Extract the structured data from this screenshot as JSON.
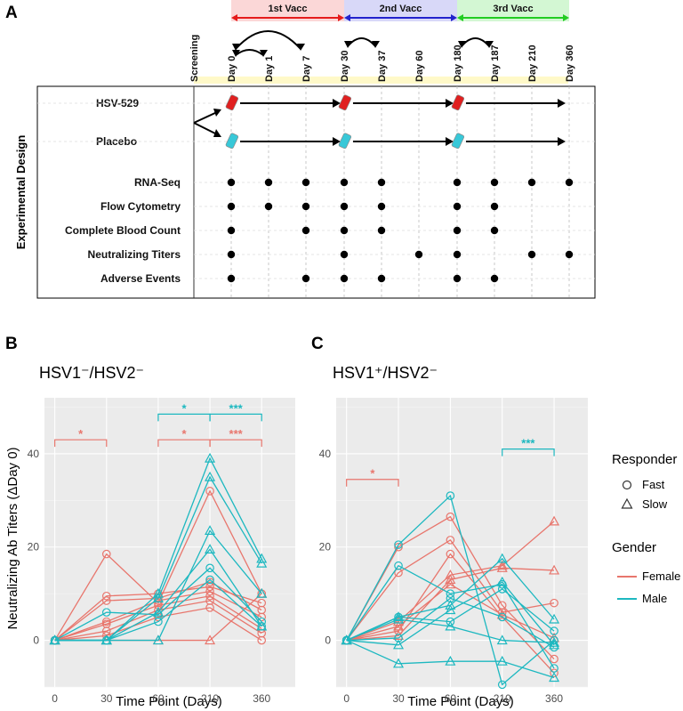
{
  "colors": {
    "female": "#E8766D",
    "male": "#1DB8C0",
    "panel_bg": "#EBEBEB",
    "grid_major": "#FFFFFF",
    "vacc1": "#E51B1B",
    "vacc2": "#2222CC",
    "vacc3": "#22CC22"
  },
  "panel_a": {
    "label": "A",
    "vaccinations": [
      {
        "label": "1st Vacc",
        "from": "Day 0",
        "to": "Day 30"
      },
      {
        "label": "2nd Vacc",
        "from": "Day 30",
        "to": "Day 180"
      },
      {
        "label": "3rd Vacc",
        "from": "Day 180",
        "to": "Day 360"
      }
    ],
    "timepoints": [
      "Screening",
      "Day 0",
      "Day 1",
      "Day 7",
      "Day 30",
      "Day 37",
      "Day 60",
      "Day 180",
      "Day 187",
      "Day 210",
      "Day 360"
    ],
    "y_title": "Experimental Design",
    "arms": [
      "HSV-529",
      "Placebo"
    ],
    "assays": [
      {
        "name": "RNA-Seq",
        "days": [
          "Day 0",
          "Day 1",
          "Day 7",
          "Day 30",
          "Day 37",
          "Day 180",
          "Day 187",
          "Day 210",
          "Day 360"
        ]
      },
      {
        "name": "Flow Cytometry",
        "days": [
          "Day 0",
          "Day 1",
          "Day 7",
          "Day 30",
          "Day 37",
          "Day 180",
          "Day 187"
        ]
      },
      {
        "name": "Complete Blood Count",
        "days": [
          "Day 0",
          "Day 7",
          "Day 30",
          "Day 37",
          "Day 180",
          "Day 187"
        ]
      },
      {
        "name": "Neutralizing Titers",
        "days": [
          "Day 0",
          "Day 30",
          "Day 60",
          "Day 180",
          "Day 210",
          "Day 360"
        ]
      },
      {
        "name": "Adverse Events",
        "days": [
          "Day 0",
          "Day 7",
          "Day 30",
          "Day 37",
          "Day 180",
          "Day 187"
        ]
      }
    ]
  },
  "chart_data": [
    {
      "panel": "B",
      "type": "line",
      "title": "HSV1⁻/HSV2⁻",
      "xlabel": "Time Point (Days)",
      "ylabel": "Neutralizing Ab Titers (ΔDay 0)",
      "x_categories": [
        "0",
        "30",
        "60",
        "210",
        "360"
      ],
      "y_ticks": [
        0,
        20,
        40
      ],
      "ylim": [
        -10,
        52
      ],
      "grid": true,
      "series": [
        {
          "gender": "Female",
          "responder": "Fast",
          "values": [
            0,
            18.5,
            8,
            32,
            10
          ]
        },
        {
          "gender": "Female",
          "responder": "Fast",
          "values": [
            0,
            9.5,
            10,
            11.5,
            8
          ]
        },
        {
          "gender": "Female",
          "responder": "Fast",
          "values": [
            0,
            8.5,
            9,
            12.5,
            6.5
          ]
        },
        {
          "gender": "Female",
          "responder": "Fast",
          "values": [
            0,
            4,
            8.5,
            10.5,
            5
          ]
        },
        {
          "gender": "Female",
          "responder": "Fast",
          "values": [
            0,
            3.5,
            7.5,
            9.5,
            2.5
          ]
        },
        {
          "gender": "Female",
          "responder": "Fast",
          "values": [
            0,
            2,
            6.5,
            8.5,
            1.5
          ]
        },
        {
          "gender": "Female",
          "responder": "Fast",
          "values": [
            0,
            1,
            5,
            7,
            0
          ]
        },
        {
          "gender": "Female",
          "responder": "Slow",
          "values": [
            0,
            0,
            0,
            0,
            10
          ]
        },
        {
          "gender": "Male",
          "responder": "Fast",
          "values": [
            0,
            6,
            5.5,
            15.5,
            4
          ]
        },
        {
          "gender": "Male",
          "responder": "Fast",
          "values": [
            0,
            0,
            4,
            13,
            3
          ]
        },
        {
          "gender": "Male",
          "responder": "Slow",
          "values": [
            0,
            0,
            10,
            39,
            17.5
          ]
        },
        {
          "gender": "Male",
          "responder": "Slow",
          "values": [
            0,
            0,
            9,
            35,
            16.5
          ]
        },
        {
          "gender": "Male",
          "responder": "Slow",
          "values": [
            0,
            0,
            0,
            23.5,
            10
          ]
        },
        {
          "gender": "Male",
          "responder": "Slow",
          "values": [
            0,
            0,
            6,
            19.5,
            3
          ]
        }
      ],
      "brackets": [
        {
          "from": "0",
          "to": "30",
          "label": "*",
          "gender": "Female",
          "y": 43
        },
        {
          "from": "60",
          "to": "210",
          "label": "*",
          "gender": "Female",
          "y": 43
        },
        {
          "from": "210",
          "to": "360",
          "label": "***",
          "gender": "Female",
          "y": 43
        },
        {
          "from": "60",
          "to": "210",
          "label": "*",
          "gender": "Male",
          "y": 48.5
        },
        {
          "from": "210",
          "to": "360",
          "label": "***",
          "gender": "Male",
          "y": 48.5
        }
      ]
    },
    {
      "panel": "C",
      "type": "line",
      "title": "HSV1⁺/HSV2⁻",
      "xlabel": "Time Point (Days)",
      "ylabel": "",
      "x_categories": [
        "0",
        "30",
        "60",
        "210",
        "360"
      ],
      "y_ticks": [
        0,
        20,
        40
      ],
      "ylim": [
        -10,
        52
      ],
      "grid": true,
      "series": [
        {
          "gender": "Female",
          "responder": "Fast",
          "values": [
            0,
            20,
            26.5,
            7.5,
            -4
          ]
        },
        {
          "gender": "Female",
          "responder": "Fast",
          "values": [
            0,
            14.5,
            21.5,
            6,
            8
          ]
        },
        {
          "gender": "Female",
          "responder": "Fast",
          "values": [
            0,
            2,
            18.5,
            5,
            -7
          ]
        },
        {
          "gender": "Female",
          "responder": "Slow",
          "values": [
            0,
            4,
            14,
            16,
            25.5
          ]
        },
        {
          "gender": "Female",
          "responder": "Slow",
          "values": [
            0,
            1,
            13,
            15.5,
            15
          ]
        },
        {
          "gender": "Female",
          "responder": "Slow",
          "values": [
            0,
            3,
            12,
            5.5,
            0.5
          ]
        },
        {
          "gender": "Male",
          "responder": "Fast",
          "values": [
            0,
            20.5,
            31,
            -9.5,
            0
          ]
        },
        {
          "gender": "Male",
          "responder": "Fast",
          "values": [
            0,
            16,
            10,
            12,
            -6
          ]
        },
        {
          "gender": "Male",
          "responder": "Fast",
          "values": [
            0,
            0.5,
            9,
            5,
            -1.5
          ]
        },
        {
          "gender": "Male",
          "responder": "Fast",
          "values": [
            0,
            5,
            4,
            11,
            2
          ]
        },
        {
          "gender": "Male",
          "responder": "Slow",
          "values": [
            0,
            -5,
            -4.5,
            -4.5,
            -8
          ]
        },
        {
          "gender": "Male",
          "responder": "Slow",
          "values": [
            0,
            5,
            7.5,
            17.5,
            4.5
          ]
        },
        {
          "gender": "Male",
          "responder": "Slow",
          "values": [
            0,
            -1,
            6.5,
            12.5,
            -1
          ]
        },
        {
          "gender": "Male",
          "responder": "Slow",
          "values": [
            0,
            4.5,
            3,
            0,
            -0.5
          ]
        }
      ],
      "brackets": [
        {
          "from": "0",
          "to": "30",
          "label": "*",
          "gender": "Female",
          "y": 34.5
        },
        {
          "from": "210",
          "to": "360",
          "label": "***",
          "gender": "Male",
          "y": 41
        }
      ]
    }
  ],
  "legend": {
    "responder_title": "Responder",
    "responder_items": [
      "Fast",
      "Slow"
    ],
    "gender_title": "Gender",
    "gender_items": [
      "Female",
      "Male"
    ],
    "placement": "right"
  },
  "panel_labels": {
    "b": "B",
    "c": "C"
  }
}
